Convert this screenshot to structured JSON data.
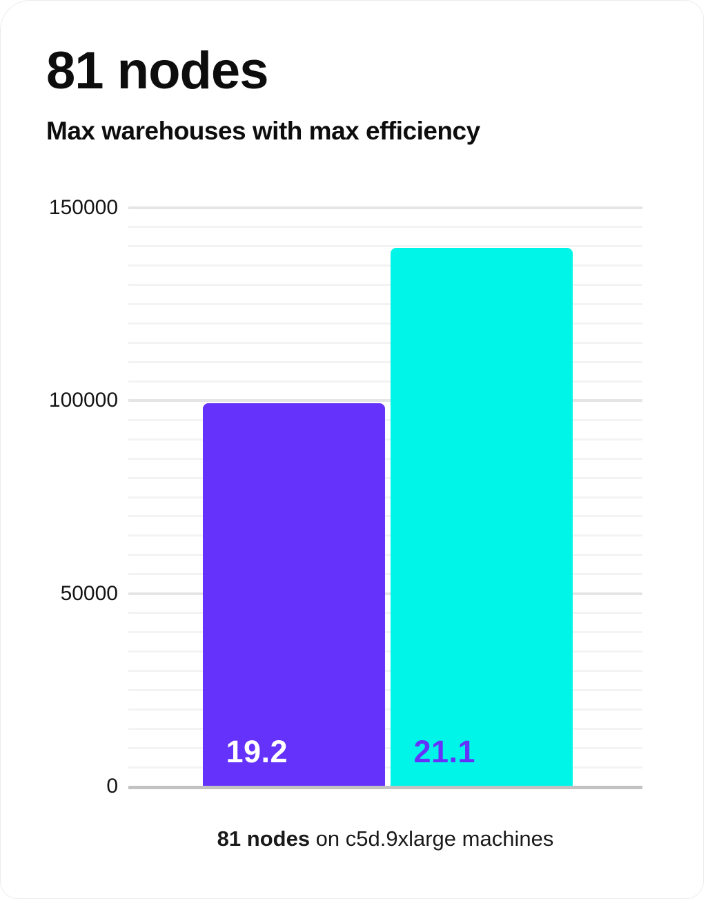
{
  "header": {
    "title": "81 nodes",
    "subtitle": "Max warehouses with max efficiency"
  },
  "caption": {
    "bold": "81 nodes",
    "rest": " on c5d.9xlarge machines"
  },
  "colors": {
    "bar_purple": "#6432FA",
    "bar_cyan": "#00F5E9",
    "label_on_purple": "#FFFFFF",
    "label_on_cyan": "#6432FA",
    "grid_minor": "#f3f3f3",
    "grid_major": "#e5e5e5",
    "axis_baseline": "#c2c2c2",
    "text": "#0d0d0d"
  },
  "chart_data": {
    "type": "bar",
    "title": "81 nodes",
    "subtitle": "Max warehouses with max efficiency",
    "caption": "81 nodes on c5d.9xlarge machines",
    "categories": [
      "19.2",
      "21.1"
    ],
    "values": [
      99400,
      139600
    ],
    "bars": [
      {
        "label": "19.2",
        "value": 99400,
        "color": "#6432FA",
        "label_color": "#FFFFFF"
      },
      {
        "label": "21.1",
        "value": 139600,
        "color": "#00F5E9",
        "label_color": "#6432FA"
      }
    ],
    "ylabel": "",
    "xlabel": "",
    "ylim": [
      0,
      150000
    ],
    "yticks": [
      0,
      50000,
      100000,
      150000
    ],
    "ytick_labels": [
      "0",
      "50000",
      "100000",
      "150000"
    ],
    "minor_grid_interval": 5000,
    "grid": true,
    "legend": false
  }
}
